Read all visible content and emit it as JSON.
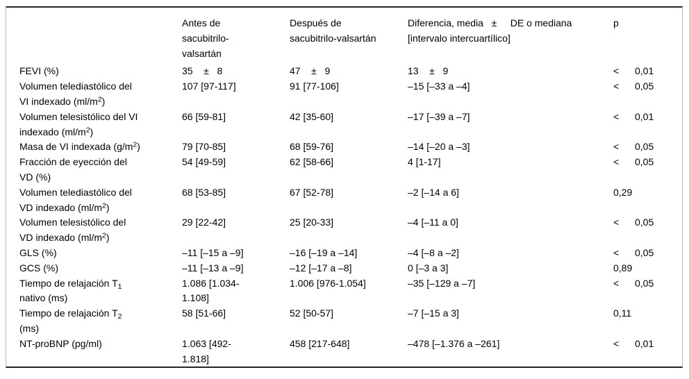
{
  "meta": {
    "background_color": "#ffffff",
    "rule_color_dark": "#242424",
    "rule_color_light": "#b9b9b9",
    "text_color": "#000000"
  },
  "table": {
    "header": {
      "param": "",
      "before": "Antes de\nsacubitrilo-\nvalsartán",
      "after": "Después de\nsacubitrilo-valsartán",
      "difference": "Diferencia, media   ±     DE o mediana\n[intervalo intercuartílico]",
      "p": "p"
    },
    "rows": [
      {
        "label": "FEVI (%)",
        "before": "35    ±   8",
        "after": "47    ±   9",
        "difference": "13    ±   9",
        "p_sign": "<",
        "p_value": "0,01"
      },
      {
        "label": "Volumen telediastólico del\nVI indexado (ml/m^{2})",
        "before": "107 [97-117]",
        "after": "91 [77-106]",
        "difference": "–15 [–33 a –4]",
        "p_sign": "<",
        "p_value": "0,05"
      },
      {
        "label": "Volumen telesistólico del VI\nindexado (ml/m^{2})",
        "before": "66 [59-81]",
        "after": "42 [35-60]",
        "difference": "–17 [–39 a –7]",
        "p_sign": "<",
        "p_value": "0,01"
      },
      {
        "label": "Masa de VI indexada (g/m^{2})",
        "before": "79 [70-85]",
        "after": "68 [59-76]",
        "difference": "–14 [–20 a –3]",
        "p_sign": "<",
        "p_value": "0,05"
      },
      {
        "label": "Fracción de eyección del\nVD (%)",
        "before": "54 [49-59]",
        "after": "62 [58-66]",
        "difference": "4 [1-17]",
        "p_sign": "<",
        "p_value": "0,05"
      },
      {
        "label": "Volumen telediastólico del\nVD indexado (ml/m^{2})",
        "before": "68 [53-85]",
        "after": "67 [52-78]",
        "difference": "–2 [–14 a 6]",
        "p_sign": "",
        "p_value": "0,29"
      },
      {
        "label": "Volumen telesistólico del\nVD indexado (ml/m^{2})",
        "before": "29 [22-42]",
        "after": "25 [20-33]",
        "difference": "–4 [–11 a 0]",
        "p_sign": "<",
        "p_value": "0,05"
      },
      {
        "label": "GLS (%)",
        "before": "–11 [–15 a –9]",
        "after": "–16 [–19 a –14]",
        "difference": "–4 [–8 a –2]",
        "p_sign": "<",
        "p_value": "0,05"
      },
      {
        "label": "GCS (%)",
        "before": "–11 [–13 a –9]",
        "after": "–12 [–17 a –8]",
        "difference": "0 [–3 a 3]",
        "p_sign": "",
        "p_value": "0,89"
      },
      {
        "label": "Tiempo de relajación T_{1}\nnativo (ms)",
        "before": "1.086 [1.034-\n1.108]",
        "after": "1.006 [976-1.054]",
        "difference": "–35 [–129 a –7]",
        "p_sign": "<",
        "p_value": "0,05"
      },
      {
        "label": "Tiempo de relajación T_{2}\n(ms)",
        "before": "58 [51-66]",
        "after": "52 [50-57]",
        "difference": "–7 [–15 a 3]",
        "p_sign": "",
        "p_value": "0,11"
      },
      {
        "label": "NT-proBNP (pg/ml)",
        "before": "1.063 [492-\n1.818]",
        "after": "458 [217-648]",
        "difference": "–478 [–1.376 a –261]",
        "p_sign": "<",
        "p_value": "0,01"
      }
    ]
  }
}
